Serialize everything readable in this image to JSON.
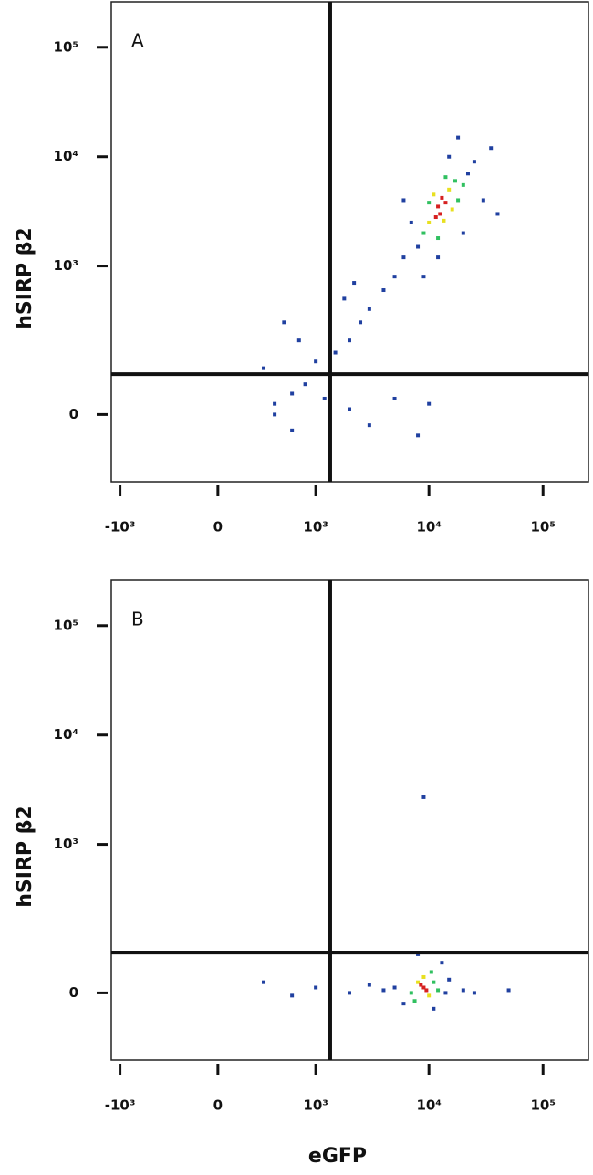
{
  "chart_data": [
    {
      "type": "scatter",
      "panel_label": "A",
      "ylabel": "hSIRP β2",
      "scale": "logicle",
      "xlim": [
        -1200,
        250000
      ],
      "ylim": [
        -170,
        260000
      ],
      "xticks": [
        {
          "value": -1000,
          "label": "-10³"
        },
        0,
        {
          "value": 1000,
          "label": "10³"
        },
        {
          "value": 10000,
          "label": "10⁴"
        },
        {
          "value": 100000,
          "label": "10⁵"
        }
      ],
      "yticks": [
        0,
        {
          "value": 1000,
          "label": "10³"
        },
        {
          "value": 10000,
          "label": "10⁴"
        },
        {
          "value": 100000,
          "label": "10⁵"
        }
      ],
      "gates": {
        "x": 1350,
        "y": 84
      },
      "series": [
        {
          "color": "#2040a0",
          "x": [
            8000,
            6000,
            22000,
            25000,
            7000,
            5000,
            30000,
            15000,
            4000,
            3000,
            2500,
            2000,
            1500,
            1000,
            800,
            600,
            400,
            300,
            500,
            700,
            1200,
            2000,
            3000,
            5000,
            8000,
            10000,
            1800,
            600,
            400,
            2200,
            9000,
            12000,
            20000,
            35000,
            40000,
            18000,
            6000
          ],
          "values": [
            1500,
            1200,
            7000,
            9000,
            2500,
            800,
            4000,
            10000,
            600,
            400,
            300,
            200,
            150,
            120,
            60,
            40,
            20,
            100,
            300,
            200,
            30,
            10,
            -20,
            30,
            -40,
            20,
            500,
            -30,
            0,
            700,
            800,
            1200,
            2000,
            12000,
            3000,
            15000,
            4000
          ]
        },
        {
          "color": "#30c060",
          "x": [
            9000,
            17000,
            18000,
            10000,
            14000,
            12000,
            20000
          ],
          "values": [
            2000,
            6000,
            4000,
            3800,
            6500,
            1800,
            5500
          ]
        },
        {
          "color": "#e8e020",
          "x": [
            10000,
            15000,
            13500,
            11000,
            16000
          ],
          "values": [
            2500,
            5000,
            2600,
            4500,
            3300
          ]
        },
        {
          "color": "#d62020",
          "x": [
            12000,
            13000,
            11500,
            14000,
            12500
          ],
          "values": [
            3500,
            4200,
            2800,
            3800,
            3000
          ]
        }
      ]
    },
    {
      "type": "scatter",
      "panel_label": "B",
      "ylabel": "hSIRP β2",
      "xlabel": "eGFP",
      "scale": "logicle",
      "xlim": [
        -1200,
        250000
      ],
      "ylim": [
        -170,
        260000
      ],
      "xticks": [
        {
          "value": -1000,
          "label": "-10³"
        },
        0,
        {
          "value": 1000,
          "label": "10³"
        },
        {
          "value": 10000,
          "label": "10⁴"
        },
        {
          "value": 100000,
          "label": "10⁵"
        }
      ],
      "yticks": [
        0,
        {
          "value": 1000,
          "label": "10³"
        },
        {
          "value": 10000,
          "label": "10⁴"
        },
        {
          "value": 100000,
          "label": "10⁵"
        }
      ],
      "gates": {
        "x": 1350,
        "y": 84
      },
      "series": [
        {
          "color": "#2040a0",
          "x": [
            5000,
            14000,
            15000,
            6000,
            4000,
            3000,
            2000,
            1000,
            600,
            300,
            20000,
            13000,
            8000,
            9000,
            11000,
            25000,
            50000
          ],
          "values": [
            10,
            0,
            25,
            -20,
            5,
            15,
            0,
            10,
            -5,
            20,
            5,
            60,
            80,
            2700,
            -30,
            0,
            5
          ]
        },
        {
          "color": "#30c060",
          "x": [
            7000,
            11000,
            10500,
            7500,
            12000
          ],
          "values": [
            0,
            20,
            40,
            -15,
            5
          ]
        },
        {
          "color": "#e8e020",
          "x": [
            8000,
            10000,
            9000
          ],
          "values": [
            20,
            -5,
            30
          ]
        },
        {
          "color": "#d62020",
          "x": [
            9000,
            8500,
            9500
          ],
          "values": [
            10,
            15,
            5
          ]
        }
      ]
    }
  ]
}
